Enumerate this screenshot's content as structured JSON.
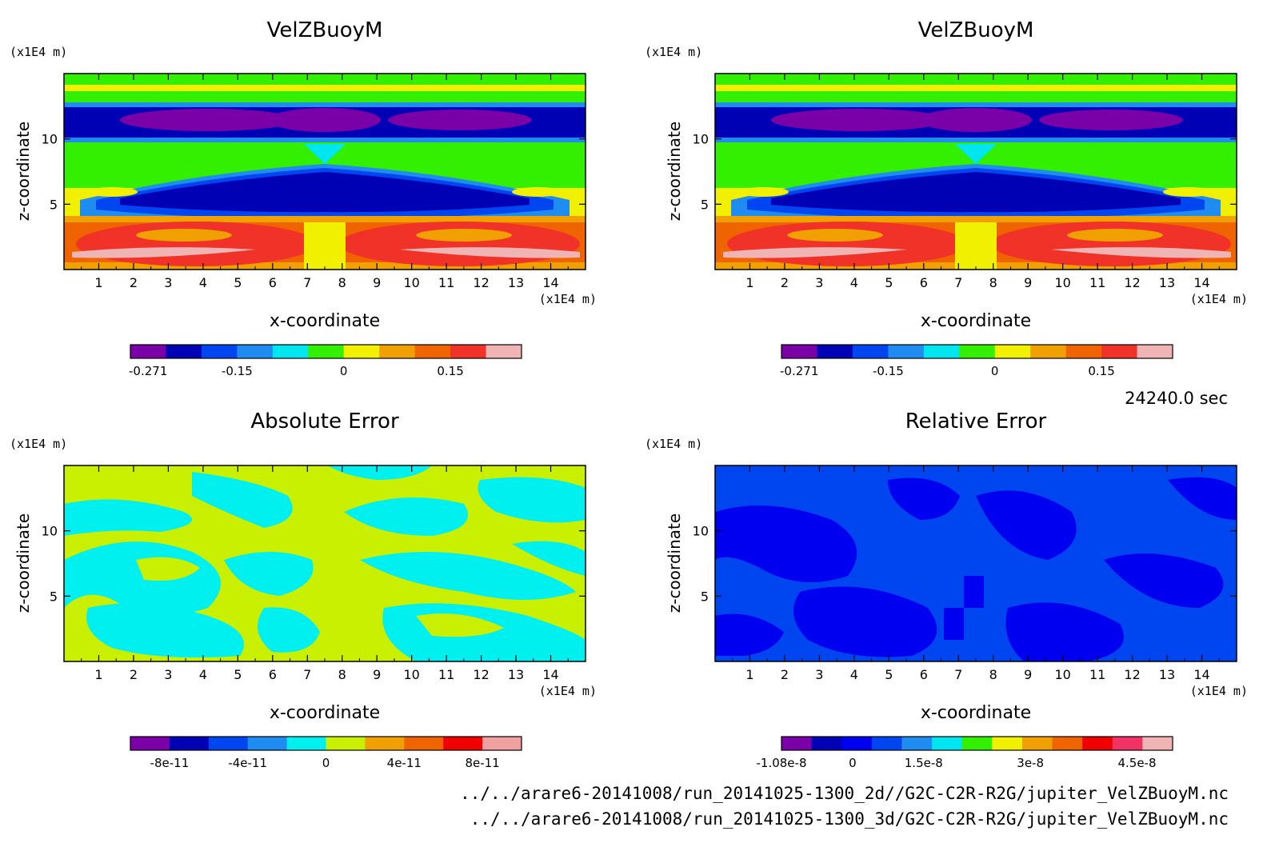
{
  "chart_data": [
    {
      "type": "heatmap",
      "title": "VelZBuoyM",
      "xlabel": "x-coordinate",
      "ylabel": "z-coordinate",
      "x_unit": "(x1E4 m)",
      "y_unit": "(x1E4 m)",
      "x_ticks": [
        "1",
        "2",
        "3",
        "4",
        "5",
        "6",
        "7",
        "8",
        "9",
        "10",
        "11",
        "12",
        "13",
        "14"
      ],
      "y_ticks": [
        "5",
        "10"
      ],
      "xlim": [
        0,
        15
      ],
      "ylim": [
        0,
        15
      ],
      "colorbar": {
        "colors": [
          "#7a00a8",
          "#0000b4",
          "#0046f0",
          "#1e8cf0",
          "#00e6f0",
          "#32f000",
          "#f0f000",
          "#f0a000",
          "#f06400",
          "#f03228",
          "#f0b4b4"
        ],
        "tick_labels": [
          "-0.271",
          "-0.15",
          "0",
          "0.15"
        ],
        "tick_fracs": [
          0.0454,
          0.2727,
          0.5454,
          0.8181
        ]
      }
    },
    {
      "type": "heatmap",
      "title": "VelZBuoyM",
      "xlabel": "x-coordinate",
      "ylabel": "z-coordinate",
      "x_unit": "(x1E4 m)",
      "y_unit": "(x1E4 m)",
      "x_ticks": [
        "1",
        "2",
        "3",
        "4",
        "5",
        "6",
        "7",
        "8",
        "9",
        "10",
        "11",
        "12",
        "13",
        "14"
      ],
      "y_ticks": [
        "5",
        "10"
      ],
      "xlim": [
        0,
        15
      ],
      "ylim": [
        0,
        15
      ],
      "colorbar": {
        "colors": [
          "#7a00a8",
          "#0000b4",
          "#0046f0",
          "#1e8cf0",
          "#00e6f0",
          "#32f000",
          "#f0f000",
          "#f0a000",
          "#f06400",
          "#f03228",
          "#f0b4b4"
        ],
        "tick_labels": [
          "-0.271",
          "-0.15",
          "0",
          "0.15"
        ],
        "tick_fracs": [
          0.0454,
          0.2727,
          0.5454,
          0.8181
        ]
      }
    },
    {
      "type": "heatmap",
      "title": "Absolute Error",
      "xlabel": "x-coordinate",
      "ylabel": "z-coordinate",
      "x_unit": "(x1E4 m)",
      "y_unit": "(x1E4 m)",
      "x_ticks": [
        "1",
        "2",
        "3",
        "4",
        "5",
        "6",
        "7",
        "8",
        "9",
        "10",
        "11",
        "12",
        "13",
        "14"
      ],
      "y_ticks": [
        "5",
        "10"
      ],
      "xlim": [
        0,
        15
      ],
      "ylim": [
        0,
        15
      ],
      "colorbar": {
        "colors": [
          "#7a00a8",
          "#0000b4",
          "#0046f0",
          "#1e8cf0",
          "#00f0f0",
          "#c8f000",
          "#f0a000",
          "#f06400",
          "#f00000",
          "#f0a0a0"
        ],
        "tick_labels": [
          "-8e-11",
          "-4e-11",
          "0",
          "4e-11",
          "8e-11"
        ],
        "tick_fracs": [
          0.1,
          0.3,
          0.5,
          0.7,
          0.9
        ]
      }
    },
    {
      "type": "heatmap",
      "title": "Relative Error",
      "xlabel": "x-coordinate",
      "ylabel": "z-coordinate",
      "x_unit": "(x1E4 m)",
      "y_unit": "(x1E4 m)",
      "x_ticks": [
        "1",
        "2",
        "3",
        "4",
        "5",
        "6",
        "7",
        "8",
        "9",
        "10",
        "11",
        "12",
        "13",
        "14"
      ],
      "y_ticks": [
        "5",
        "10"
      ],
      "xlim": [
        0,
        15
      ],
      "ylim": [
        0,
        15
      ],
      "colorbar": {
        "colors": [
          "#7a00a8",
          "#0000b4",
          "#0000f0",
          "#0046f0",
          "#1e8cf0",
          "#00e6f0",
          "#32f000",
          "#f0f000",
          "#f0a000",
          "#f06400",
          "#f00000",
          "#f03264",
          "#f0b4b4"
        ],
        "tick_labels": [
          "-1.08e-8",
          "0",
          "1.5e-8",
          "3e-8",
          "4.5e-8"
        ],
        "tick_fracs": [
          0.0,
          0.1818,
          0.3636,
          0.6363,
          0.909
        ]
      }
    }
  ],
  "time_label": "24240.0 sec",
  "files": [
    "../../arare6-20141008/run_20141025-1300_2d//G2C-C2R-R2G/jupiter_VelZBuoyM.nc",
    "../../arare6-20141008/run_20141025-1300_3d/G2C-C2R-R2G/jupiter_VelZBuoyM.nc"
  ]
}
